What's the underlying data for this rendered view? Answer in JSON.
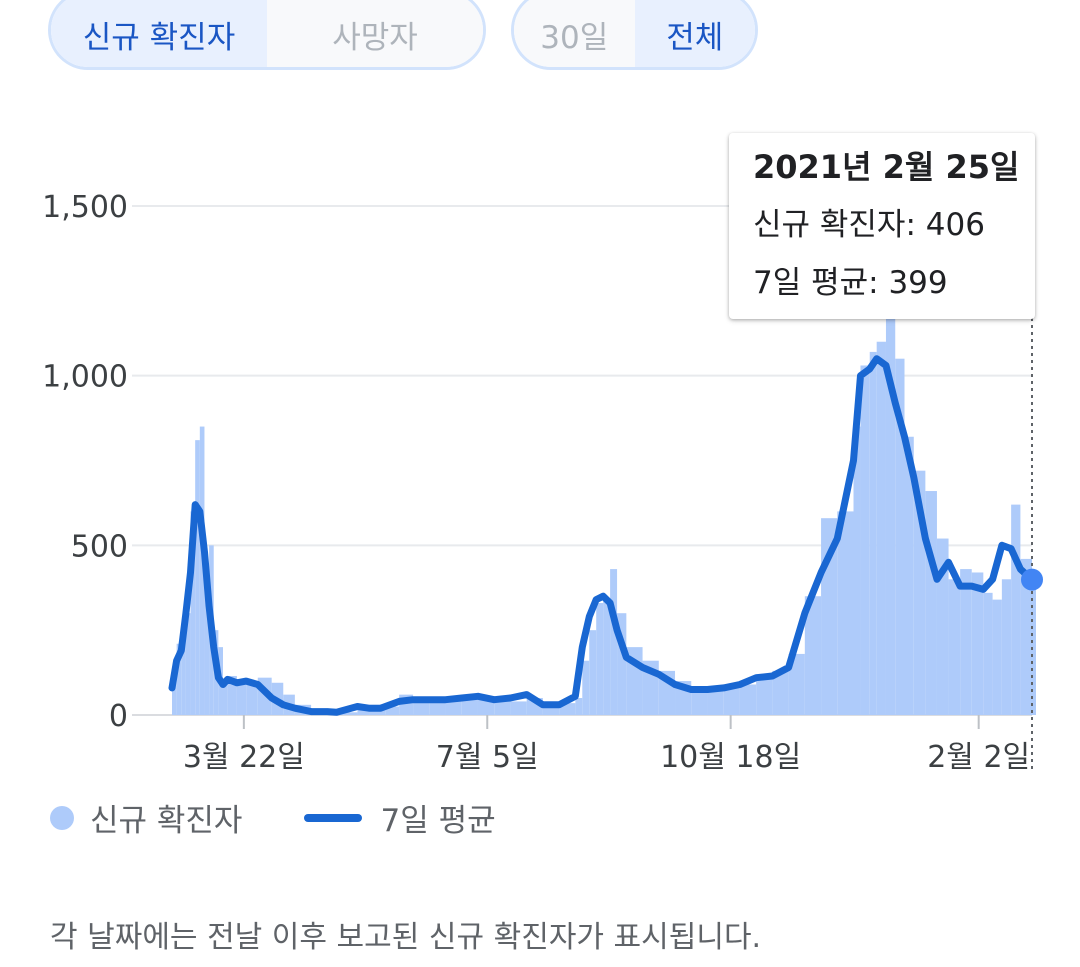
{
  "toggles": {
    "metric": [
      {
        "label": "신규 확진자",
        "active": true
      },
      {
        "label": "사망자",
        "active": false
      }
    ],
    "range": [
      {
        "label": "30일",
        "active": false
      },
      {
        "label": "전체",
        "active": true
      }
    ]
  },
  "tooltip": {
    "date": "2021년 2월 25일",
    "cases_label": "신규 확진자",
    "cases_value": "406",
    "avg_label": "7일 평균",
    "avg_value": "399"
  },
  "legend": {
    "cases": "신규 확진자",
    "average": "7일 평균"
  },
  "footnote": "각 날짜에는 전날 이후 보고된 신규 확진자가 표시됩니다.",
  "colors": {
    "bar": "#aecbfa",
    "line": "#1967d2",
    "marker": "#4285f4",
    "grid": "#e8eaed",
    "axis_text": "#3c4043"
  },
  "chart_data": {
    "type": "bar",
    "combo_line": true,
    "title": "",
    "xlabel": "",
    "ylabel": "",
    "x_range": [
      "2020-02-20",
      "2021-02-25"
    ],
    "ylim": [
      0,
      1500
    ],
    "y_ticks": [
      0,
      500,
      1000,
      1500
    ],
    "y_tick_labels": [
      "0",
      "500",
      "1,000",
      "1,500"
    ],
    "x_ticks": [
      {
        "date": "2020-03-22",
        "label": "3월 22일"
      },
      {
        "date": "2020-07-05",
        "label": "7월 5일"
      },
      {
        "date": "2020-10-18",
        "label": "10월 18일"
      },
      {
        "date": "2021-02-02",
        "label": "2월 2일"
      }
    ],
    "grid": true,
    "legend_position": "bottom-left",
    "series": [
      {
        "name": "신규 확진자",
        "kind": "bar",
        "points": [
          [
            "2020-02-20",
            110
          ],
          [
            "2020-02-22",
            210
          ],
          [
            "2020-02-24",
            230
          ],
          [
            "2020-02-26",
            300
          ],
          [
            "2020-02-28",
            600
          ],
          [
            "2020-03-01",
            810
          ],
          [
            "2020-03-03",
            850
          ],
          [
            "2020-03-05",
            440
          ],
          [
            "2020-03-07",
            500
          ],
          [
            "2020-03-09",
            250
          ],
          [
            "2020-03-11",
            200
          ],
          [
            "2020-03-13",
            100
          ],
          [
            "2020-03-15",
            115
          ],
          [
            "2020-03-19",
            100
          ],
          [
            "2020-03-23",
            95
          ],
          [
            "2020-03-28",
            110
          ],
          [
            "2020-04-03",
            95
          ],
          [
            "2020-04-08",
            60
          ],
          [
            "2020-04-13",
            30
          ],
          [
            "2020-04-20",
            15
          ],
          [
            "2020-05-01",
            8
          ],
          [
            "2020-05-10",
            20
          ],
          [
            "2020-05-15",
            30
          ],
          [
            "2020-05-22",
            25
          ],
          [
            "2020-05-28",
            60
          ],
          [
            "2020-06-03",
            45
          ],
          [
            "2020-06-10",
            50
          ],
          [
            "2020-06-17",
            45
          ],
          [
            "2020-06-24",
            50
          ],
          [
            "2020-07-01",
            55
          ],
          [
            "2020-07-08",
            45
          ],
          [
            "2020-07-15",
            40
          ],
          [
            "2020-07-22",
            50
          ],
          [
            "2020-07-29",
            30
          ],
          [
            "2020-08-05",
            35
          ],
          [
            "2020-08-12",
            50
          ],
          [
            "2020-08-15",
            160
          ],
          [
            "2020-08-18",
            250
          ],
          [
            "2020-08-21",
            330
          ],
          [
            "2020-08-24",
            340
          ],
          [
            "2020-08-27",
            430
          ],
          [
            "2020-08-30",
            300
          ],
          [
            "2020-09-03",
            200
          ],
          [
            "2020-09-10",
            160
          ],
          [
            "2020-09-17",
            130
          ],
          [
            "2020-09-24",
            100
          ],
          [
            "2020-10-01",
            80
          ],
          [
            "2020-10-08",
            70
          ],
          [
            "2020-10-15",
            80
          ],
          [
            "2020-10-22",
            90
          ],
          [
            "2020-10-29",
            120
          ],
          [
            "2020-11-05",
            130
          ],
          [
            "2020-11-12",
            180
          ],
          [
            "2020-11-19",
            350
          ],
          [
            "2020-11-26",
            580
          ],
          [
            "2020-12-03",
            600
          ],
          [
            "2020-12-10",
            850
          ],
          [
            "2020-12-13",
            1030
          ],
          [
            "2020-12-17",
            1070
          ],
          [
            "2020-12-20",
            1100
          ],
          [
            "2020-12-24",
            1240
          ],
          [
            "2020-12-28",
            1050
          ],
          [
            "2021-01-01",
            820
          ],
          [
            "2021-01-05",
            720
          ],
          [
            "2021-01-10",
            660
          ],
          [
            "2021-01-15",
            520
          ],
          [
            "2021-01-20",
            400
          ],
          [
            "2021-01-25",
            430
          ],
          [
            "2021-01-30",
            420
          ],
          [
            "2021-02-04",
            360
          ],
          [
            "2021-02-08",
            340
          ],
          [
            "2021-02-12",
            400
          ],
          [
            "2021-02-16",
            620
          ],
          [
            "2021-02-20",
            460
          ],
          [
            "2021-02-25",
            406
          ]
        ]
      },
      {
        "name": "7일 평균",
        "kind": "line",
        "points": [
          [
            "2020-02-20",
            80
          ],
          [
            "2020-02-22",
            160
          ],
          [
            "2020-02-24",
            190
          ],
          [
            "2020-02-26",
            300
          ],
          [
            "2020-02-28",
            420
          ],
          [
            "2020-03-01",
            620
          ],
          [
            "2020-03-03",
            600
          ],
          [
            "2020-03-05",
            480
          ],
          [
            "2020-03-07",
            320
          ],
          [
            "2020-03-09",
            200
          ],
          [
            "2020-03-11",
            110
          ],
          [
            "2020-03-13",
            90
          ],
          [
            "2020-03-15",
            105
          ],
          [
            "2020-03-17",
            100
          ],
          [
            "2020-03-19",
            95
          ],
          [
            "2020-03-23",
            100
          ],
          [
            "2020-03-28",
            90
          ],
          [
            "2020-04-03",
            50
          ],
          [
            "2020-04-08",
            30
          ],
          [
            "2020-04-13",
            20
          ],
          [
            "2020-04-20",
            10
          ],
          [
            "2020-04-27",
            10
          ],
          [
            "2020-05-01",
            8
          ],
          [
            "2020-05-10",
            25
          ],
          [
            "2020-05-15",
            20
          ],
          [
            "2020-05-20",
            20
          ],
          [
            "2020-05-28",
            40
          ],
          [
            "2020-06-03",
            45
          ],
          [
            "2020-06-10",
            45
          ],
          [
            "2020-06-17",
            45
          ],
          [
            "2020-06-24",
            50
          ],
          [
            "2020-07-01",
            55
          ],
          [
            "2020-07-08",
            45
          ],
          [
            "2020-07-15",
            50
          ],
          [
            "2020-07-22",
            60
          ],
          [
            "2020-07-29",
            30
          ],
          [
            "2020-08-05",
            30
          ],
          [
            "2020-08-12",
            55
          ],
          [
            "2020-08-15",
            200
          ],
          [
            "2020-08-18",
            290
          ],
          [
            "2020-08-21",
            340
          ],
          [
            "2020-08-24",
            350
          ],
          [
            "2020-08-27",
            330
          ],
          [
            "2020-08-30",
            250
          ],
          [
            "2020-09-03",
            170
          ],
          [
            "2020-09-10",
            140
          ],
          [
            "2020-09-17",
            120
          ],
          [
            "2020-09-24",
            90
          ],
          [
            "2020-10-01",
            75
          ],
          [
            "2020-10-08",
            75
          ],
          [
            "2020-10-15",
            80
          ],
          [
            "2020-10-22",
            90
          ],
          [
            "2020-10-29",
            110
          ],
          [
            "2020-11-05",
            115
          ],
          [
            "2020-11-12",
            140
          ],
          [
            "2020-11-19",
            300
          ],
          [
            "2020-11-26",
            420
          ],
          [
            "2020-12-03",
            520
          ],
          [
            "2020-12-10",
            750
          ],
          [
            "2020-12-13",
            1000
          ],
          [
            "2020-12-17",
            1020
          ],
          [
            "2020-12-20",
            1050
          ],
          [
            "2020-12-24",
            1030
          ],
          [
            "2020-12-28",
            920
          ],
          [
            "2021-01-01",
            820
          ],
          [
            "2021-01-05",
            700
          ],
          [
            "2021-01-10",
            520
          ],
          [
            "2021-01-15",
            400
          ],
          [
            "2021-01-20",
            450
          ],
          [
            "2021-01-25",
            380
          ],
          [
            "2021-01-30",
            380
          ],
          [
            "2021-02-04",
            370
          ],
          [
            "2021-02-08",
            400
          ],
          [
            "2021-02-12",
            500
          ],
          [
            "2021-02-16",
            490
          ],
          [
            "2021-02-20",
            430
          ],
          [
            "2021-02-25",
            399
          ]
        ]
      }
    ],
    "selected": {
      "date": "2021-02-25",
      "cases": 406,
      "average": 399
    }
  }
}
